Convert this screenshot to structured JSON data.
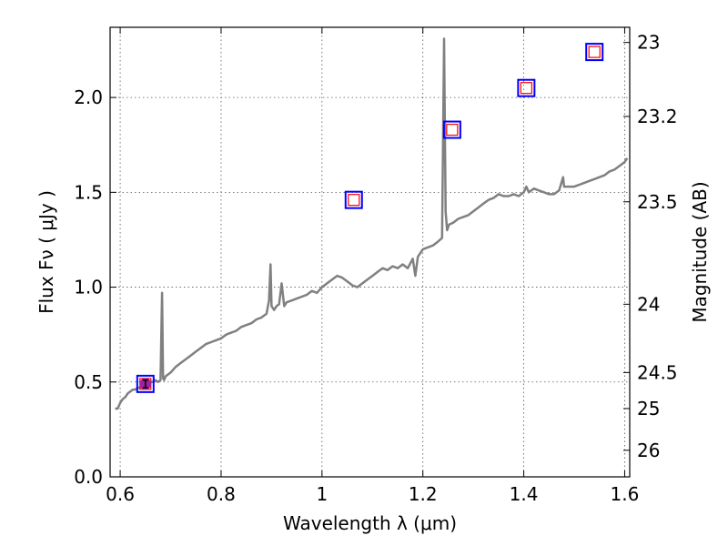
{
  "chart_data": {
    "type": "line",
    "title": "",
    "xlabel": "Wavelength  λ (μm)",
    "ylabel": "Flux  Fν  ( μJy )",
    "ylabel_right": "Magnitude (AB)",
    "xlim": [
      0.58,
      1.61
    ],
    "ylim": [
      0.0,
      2.37
    ],
    "grid": true,
    "x_ticks": [
      0.6,
      0.8,
      1.0,
      1.2,
      1.4,
      1.6
    ],
    "x_tick_labels": [
      "0.6",
      "0.8",
      "1",
      "1.2",
      "1.4",
      "1.6"
    ],
    "y_ticks": [
      0.0,
      0.5,
      1.0,
      1.5,
      2.0
    ],
    "y_tick_labels": [
      "0.0",
      "0.5",
      "1.0",
      "1.5",
      "2.0"
    ],
    "right_ticks": [
      {
        "label": "23",
        "flux": 2.29
      },
      {
        "label": "23.2",
        "flux": 1.9
      },
      {
        "label": "23.5",
        "flux": 1.45
      },
      {
        "label": "24",
        "flux": 0.91
      },
      {
        "label": "24.5",
        "flux": 0.55
      },
      {
        "label": "25",
        "flux": 0.36
      },
      {
        "label": "26",
        "flux": 0.14
      }
    ],
    "colors": {
      "spectrum": "#808080",
      "square_outer": "#0000ff",
      "square_inner": "#ff0000",
      "point": "#a020a0"
    },
    "series": [
      {
        "kind": "spectrum",
        "x": [
          0.59,
          0.595,
          0.6,
          0.605,
          0.61,
          0.615,
          0.62,
          0.625,
          0.63,
          0.635,
          0.64,
          0.645,
          0.65,
          0.655,
          0.66,
          0.665,
          0.67,
          0.675,
          0.68,
          0.683,
          0.685,
          0.687,
          0.69,
          0.7,
          0.71,
          0.72,
          0.73,
          0.74,
          0.75,
          0.76,
          0.77,
          0.78,
          0.79,
          0.8,
          0.81,
          0.82,
          0.83,
          0.84,
          0.85,
          0.86,
          0.87,
          0.88,
          0.89,
          0.895,
          0.898,
          0.9,
          0.905,
          0.91,
          0.915,
          0.92,
          0.925,
          0.93,
          0.94,
          0.95,
          0.96,
          0.97,
          0.98,
          0.99,
          1.0,
          1.01,
          1.02,
          1.03,
          1.04,
          1.05,
          1.06,
          1.07,
          1.08,
          1.09,
          1.1,
          1.11,
          1.12,
          1.13,
          1.14,
          1.15,
          1.16,
          1.17,
          1.18,
          1.185,
          1.19,
          1.2,
          1.21,
          1.22,
          1.23,
          1.238,
          1.242,
          1.245,
          1.248,
          1.252,
          1.26,
          1.27,
          1.28,
          1.29,
          1.3,
          1.31,
          1.32,
          1.33,
          1.34,
          1.35,
          1.36,
          1.37,
          1.38,
          1.39,
          1.4,
          1.405,
          1.41,
          1.42,
          1.43,
          1.44,
          1.45,
          1.46,
          1.47,
          1.478,
          1.48,
          1.49,
          1.5,
          1.51,
          1.52,
          1.53,
          1.54,
          1.55,
          1.56,
          1.57,
          1.58,
          1.59,
          1.6,
          1.605
        ],
        "y": [
          0.36,
          0.36,
          0.39,
          0.41,
          0.42,
          0.44,
          0.45,
          0.46,
          0.46,
          0.47,
          0.47,
          0.48,
          0.49,
          0.49,
          0.5,
          0.5,
          0.51,
          0.5,
          0.51,
          0.97,
          0.52,
          0.51,
          0.53,
          0.55,
          0.58,
          0.6,
          0.62,
          0.64,
          0.66,
          0.68,
          0.7,
          0.71,
          0.72,
          0.73,
          0.75,
          0.76,
          0.77,
          0.79,
          0.8,
          0.81,
          0.83,
          0.84,
          0.86,
          0.93,
          1.12,
          0.9,
          0.88,
          0.9,
          0.91,
          1.02,
          0.9,
          0.92,
          0.93,
          0.94,
          0.95,
          0.96,
          0.98,
          0.97,
          1.0,
          1.02,
          1.04,
          1.06,
          1.05,
          1.03,
          1.01,
          1.0,
          1.02,
          1.04,
          1.06,
          1.08,
          1.1,
          1.09,
          1.11,
          1.1,
          1.12,
          1.1,
          1.15,
          1.06,
          1.16,
          1.2,
          1.21,
          1.22,
          1.24,
          1.26,
          2.31,
          1.4,
          1.3,
          1.33,
          1.34,
          1.36,
          1.37,
          1.38,
          1.4,
          1.42,
          1.44,
          1.46,
          1.47,
          1.49,
          1.48,
          1.48,
          1.49,
          1.48,
          1.5,
          1.53,
          1.5,
          1.52,
          1.51,
          1.5,
          1.49,
          1.49,
          1.51,
          1.58,
          1.53,
          1.53,
          1.53,
          1.54,
          1.55,
          1.56,
          1.57,
          1.58,
          1.59,
          1.61,
          1.62,
          1.64,
          1.66,
          1.68
        ]
      },
      {
        "kind": "photometry-squares",
        "x": [
          0.65,
          1.063,
          1.258,
          1.405,
          1.54
        ],
        "y": [
          0.49,
          1.46,
          1.83,
          2.05,
          2.24
        ]
      },
      {
        "kind": "measured-point",
        "x": [
          0.65
        ],
        "y": [
          0.49
        ],
        "yerr": [
          0.02
        ]
      }
    ]
  }
}
